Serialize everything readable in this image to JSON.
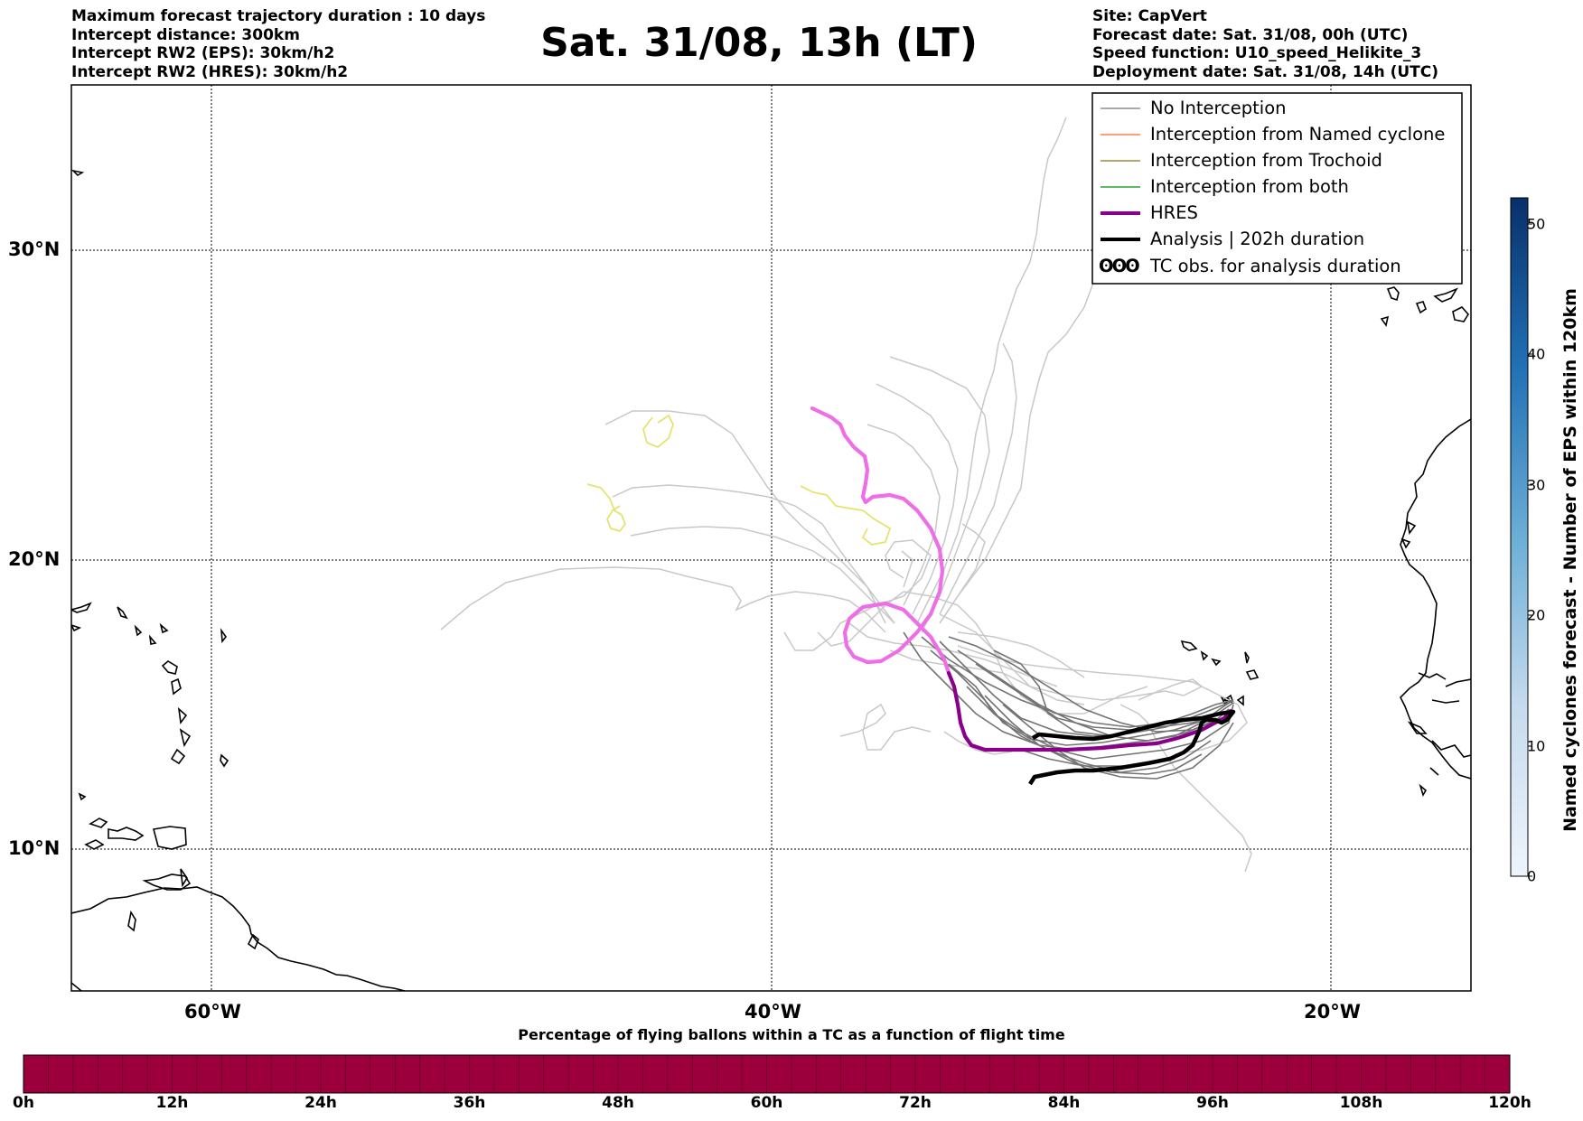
{
  "header_left": [
    "Maximum forecast trajectory duration : 10 days",
    "Intercept distance: 300km",
    "Intercept RW2 (EPS):  30km/h2",
    "Intercept RW2 (HRES): 30km/h2"
  ],
  "header_right": [
    "Site: CapVert",
    "Forecast date: Sat. 31/08, 00h (UTC)",
    "Speed function: U10_speed_Helikite_3",
    "Deployment date: Sat. 31/08, 14h (UTC)"
  ],
  "title": "Sat. 31/08, 13h (LT)",
  "map": {
    "lat_labels": [
      "30°N",
      "20°N",
      "10°N"
    ],
    "lon_labels": [
      "60°W",
      "40°W",
      "20°W"
    ],
    "grid": true,
    "lon_range": [
      -65,
      -15
    ],
    "lat_range": [
      5.3,
      34.6
    ]
  },
  "legend": [
    {
      "label": "No Interception",
      "color": "#8c8c8c",
      "style": "thin"
    },
    {
      "label": "Interception from Named cyclone",
      "color": "#ff7f50",
      "style": "thin"
    },
    {
      "label": "Interception from Trochoid",
      "color": "#9a8a3a",
      "style": "thin"
    },
    {
      "label": "Interception from both",
      "color": "#2ca02c",
      "style": "thin"
    },
    {
      "label": "HRES",
      "color": "#8b008b",
      "style": "thick"
    },
    {
      "label": "Analysis | 202h duration",
      "color": "#000000",
      "style": "thick"
    },
    {
      "label": "TC obs. for analysis duration",
      "color": "#000000",
      "style": "symbol",
      "symbol": "ʘʘʘ"
    }
  ],
  "colors": {
    "hres_early": "#8b008b",
    "hres_late": "#ee6ee8",
    "eps_light": "#c8c8c8",
    "eps_dark": "#737373",
    "trochoid_yellow": "#e3e36a",
    "time_bar": "#9c003c"
  },
  "cyclone_colorbar": {
    "title": "Named cyclones forecast - Number of EPS within 120km",
    "ticks": [
      "0",
      "10",
      "20",
      "30",
      "40",
      "50"
    ],
    "range": [
      0,
      52
    ]
  },
  "time_colorbar": {
    "title": "Percentage of flying ballons within a TC as a function of flight time",
    "ticks": [
      "0h",
      "12h",
      "24h",
      "36h",
      "48h",
      "60h",
      "72h",
      "84h",
      "96h",
      "108h",
      "120h"
    ]
  }
}
